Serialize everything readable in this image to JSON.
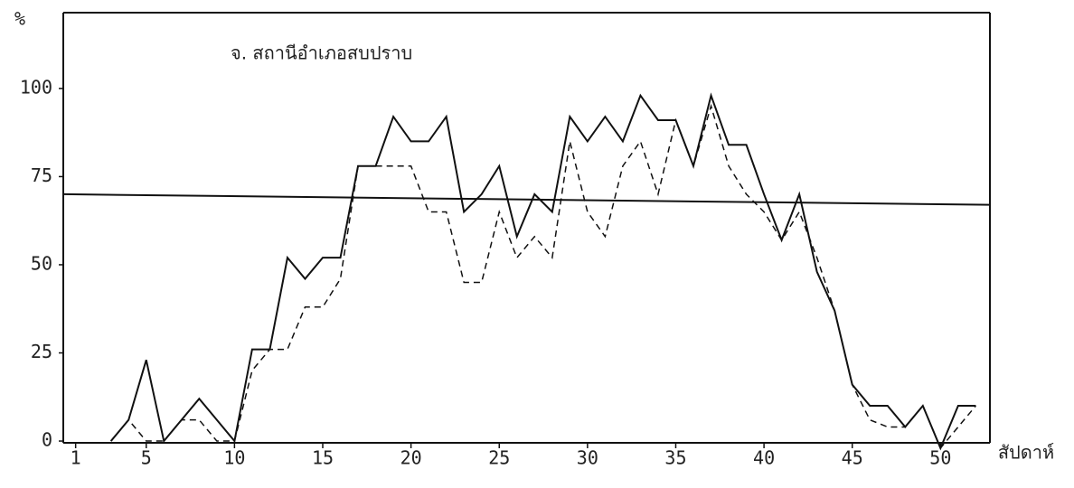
{
  "chart_data": {
    "type": "line",
    "title": "จ. สถานีอำเภอสบปราบ",
    "x_label": "สัปดาห์",
    "y_label": "%",
    "x": [
      3,
      4,
      5,
      6,
      7,
      8,
      9,
      10,
      11,
      12,
      13,
      14,
      15,
      16,
      17,
      18,
      19,
      20,
      21,
      22,
      23,
      24,
      25,
      26,
      27,
      28,
      29,
      30,
      31,
      32,
      33,
      34,
      35,
      36,
      37,
      38,
      39,
      40,
      41,
      42,
      43,
      44,
      45,
      46,
      47,
      48,
      49,
      50,
      51,
      52
    ],
    "series": [
      {
        "style": "solid",
        "color": "#111111",
        "values": [
          0,
          6,
          23,
          0,
          6,
          12,
          6,
          0,
          26,
          26,
          52,
          46,
          52,
          52,
          78,
          78,
          92,
          85,
          85,
          92,
          65,
          70,
          78,
          58,
          70,
          65,
          92,
          85,
          92,
          85,
          98,
          91,
          91,
          78,
          98,
          84,
          84,
          70,
          57,
          70,
          48,
          37,
          16,
          10,
          10,
          4,
          10,
          -2,
          10,
          10
        ]
      },
      {
        "style": "dashed",
        "color": "#111111",
        "values": [
          0,
          6,
          0,
          0,
          6,
          6,
          0,
          0,
          20,
          26,
          26,
          38,
          38,
          46,
          78,
          78,
          78,
          78,
          65,
          65,
          45,
          45,
          65,
          52,
          58,
          52,
          85,
          65,
          58,
          78,
          85,
          70,
          91,
          78,
          95,
          78,
          70,
          65,
          57,
          65,
          52,
          37,
          16,
          6,
          4,
          4,
          10,
          -2,
          4,
          10
        ]
      }
    ],
    "reference_line": {
      "values": [
        70,
        67
      ],
      "color": "#111111"
    },
    "xlim": [
      0.3,
      52.8
    ],
    "ylim": [
      -0.5,
      121.5
    ],
    "xticks": [
      1,
      5,
      10,
      15,
      20,
      25,
      30,
      35,
      40,
      45,
      50
    ],
    "yticks": [
      0,
      25,
      50,
      75,
      100
    ]
  }
}
